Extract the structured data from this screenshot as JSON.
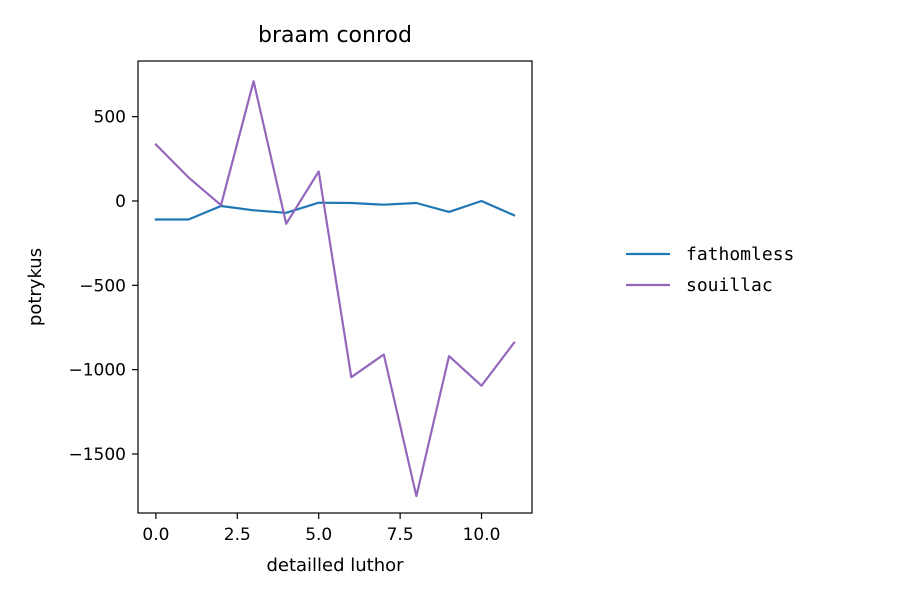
{
  "chart_data": {
    "type": "line",
    "title": "braam conrod",
    "xlabel": "detailled luthor",
    "ylabel": "potrykus",
    "xlim": [
      -0.55,
      11.55
    ],
    "ylim": [
      -1850,
      830
    ],
    "xticks": [
      0.0,
      2.5,
      5.0,
      7.5,
      10.0
    ],
    "xtick_labels": [
      "0.0",
      "2.5",
      "5.0",
      "7.5",
      "10.0"
    ],
    "yticks": [
      500,
      0,
      -500,
      -1000,
      -1500
    ],
    "ytick_labels": [
      "500",
      "0",
      "−500",
      "−1000",
      "−1500"
    ],
    "grid": false,
    "legend_position": "outside-right",
    "x": [
      0,
      1,
      2,
      3,
      4,
      5,
      6,
      7,
      8,
      9,
      10,
      11
    ],
    "series": [
      {
        "name": "fathomless",
        "color": "#1f77b4",
        "values": [
          -110,
          -110,
          -30,
          -55,
          -70,
          -10,
          -12,
          -22,
          -12,
          -65,
          0,
          -85
        ]
      },
      {
        "name": "souillac",
        "color": "#9467bd",
        "values": [
          335,
          140,
          -25,
          710,
          -135,
          175,
          -1045,
          -910,
          -1750,
          -920,
          -1095,
          -840
        ]
      }
    ]
  }
}
